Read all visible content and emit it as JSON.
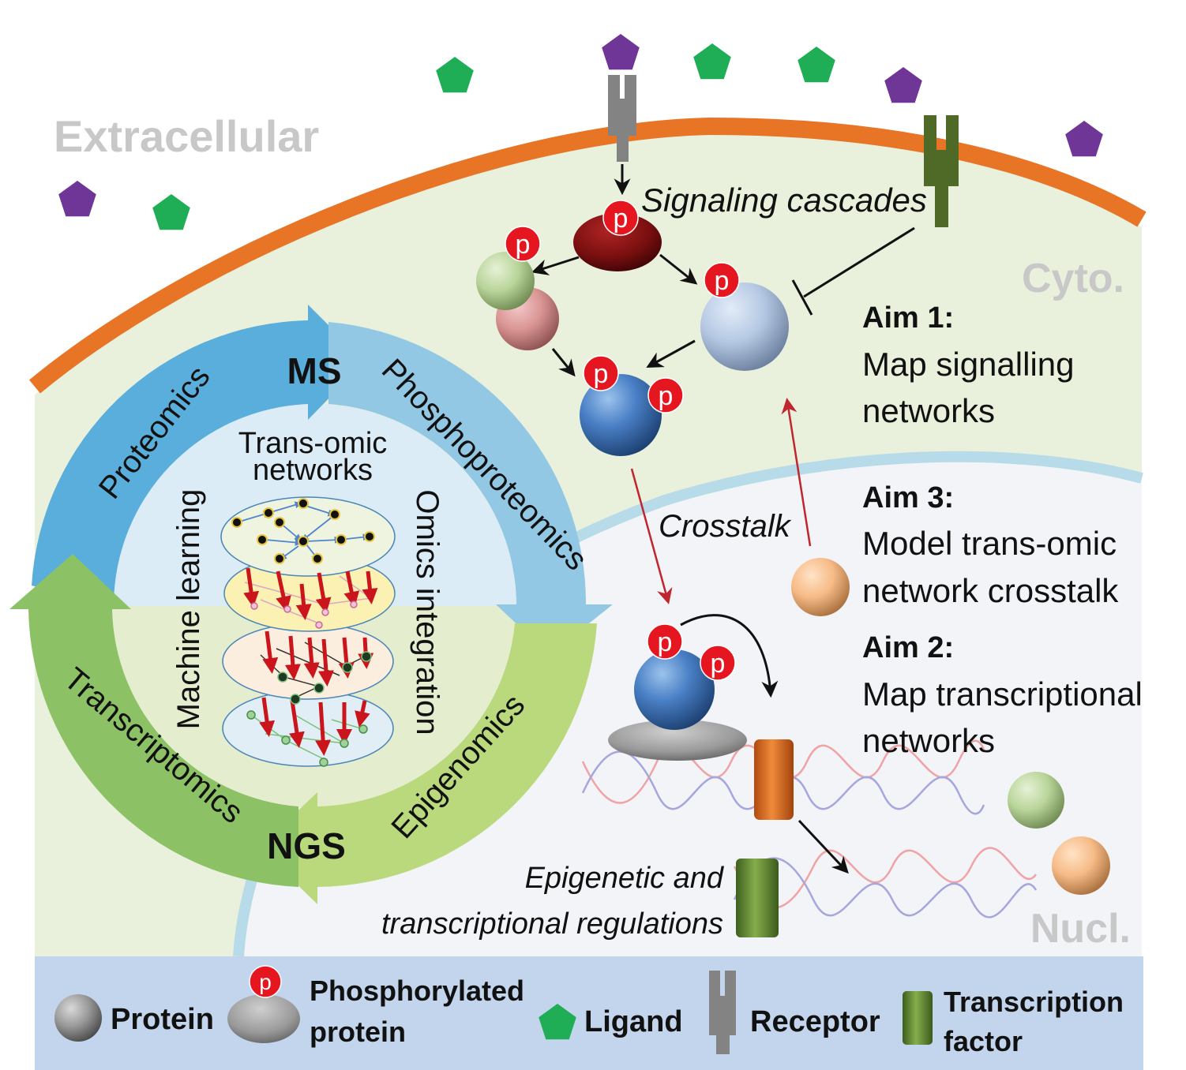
{
  "regions": {
    "extracellular": "Extracellular",
    "cytoplasm": "Cyto.",
    "nucleus": "Nucl."
  },
  "cycle": {
    "ms": "MS",
    "ngs": "NGS",
    "proteomics": "Proteomics",
    "phosphoproteomics": "Phosphoproteomics",
    "transcriptomics": "Transcriptomics",
    "epigenomics": "Epigenomics",
    "inner_title_line1": "Trans-omic",
    "inner_title_line2": "networks",
    "machine_learning": "Machine learning",
    "omics_integration": "Omics integration"
  },
  "pathway": {
    "signaling_cascades": "Signaling cascades",
    "crosstalk": "Crosstalk",
    "epigenetic_line1": "Epigenetic and",
    "epigenetic_line2": "transcriptional regulations",
    "phospho_mark": "p"
  },
  "aims": [
    {
      "title": "Aim 1:",
      "line1": "Map signalling",
      "line2": "networks"
    },
    {
      "title": "Aim 3:",
      "line1": "Model trans-omic",
      "line2": "network crosstalk"
    },
    {
      "title": "Aim 2:",
      "line1": "Map transcriptional",
      "line2": "networks"
    }
  ],
  "legend": {
    "protein": "Protein",
    "phospho_line1": "Phosphorylated",
    "phospho_line2": "protein",
    "phospho_mark": "p",
    "ligand": "Ligand",
    "receptor": "Receptor",
    "tf_line1": "Transcription",
    "tf_line2": "factor"
  },
  "colors": {
    "membrane": "#e87425",
    "cytoplasm": "#e9f0dc",
    "nucleus": "#f2f4f7",
    "nuclear_envelope": "#b7dbe8",
    "ms_arrow": "#5aaedb",
    "ms_arrow_light": "#93c8e4",
    "ngs_arrow": "#8cc265",
    "ngs_arrow_light": "#b9d97c",
    "ligand_green": "#1fae55",
    "ligand_purple": "#6f3597",
    "phospho_red": "#e5161f",
    "legend_bg": "#c3d5ec",
    "region_label": "#c8c8c8"
  }
}
